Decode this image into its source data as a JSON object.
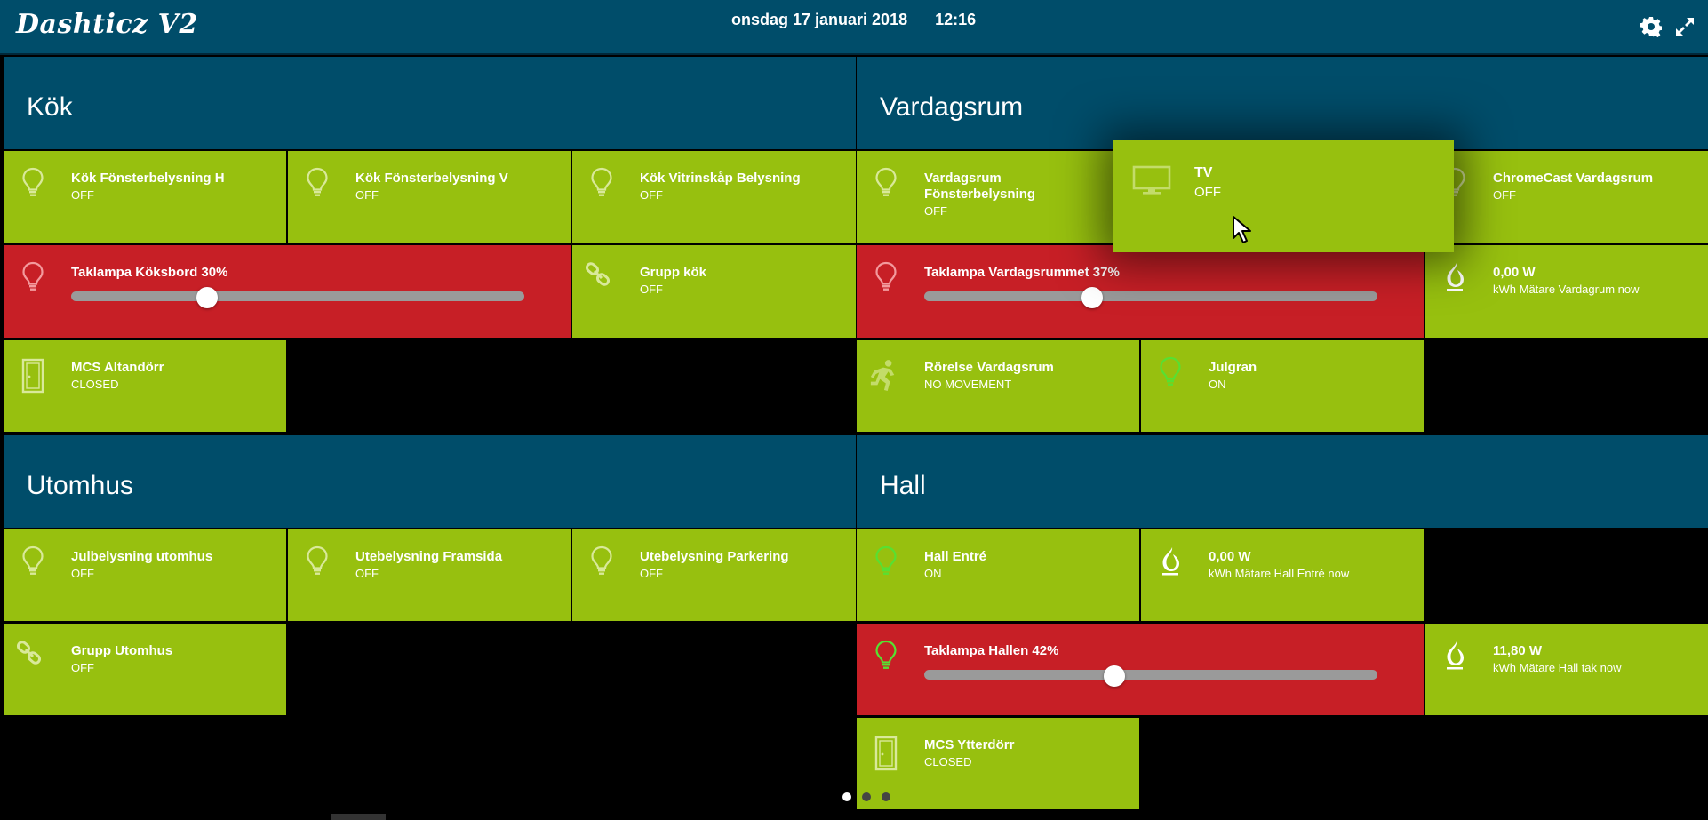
{
  "app": {
    "title": "Dashticz V2"
  },
  "header": {
    "date": "onsdag 17 januari 2018",
    "time": "12:16"
  },
  "sections": [
    {
      "title": "Kök"
    },
    {
      "title": "Vardagsrum"
    },
    {
      "title": "Utomhus"
    },
    {
      "title": "Hall"
    }
  ],
  "tiles": {
    "kok_h": {
      "name": "Kök Fönsterbelysning H",
      "status": "OFF",
      "icon": "lightbulb-icon"
    },
    "kok_v": {
      "name": "Kök Fönsterbelysning V",
      "status": "OFF",
      "icon": "lightbulb-icon"
    },
    "kok_vitrin": {
      "name": "Kök Vitrinskåp Belysning",
      "status": "OFF",
      "icon": "lightbulb-icon"
    },
    "taklampa_koksbord": {
      "name": "Taklampa Köksbord 30%",
      "level": 30,
      "icon": "lightbulb-icon",
      "color": "#c71f26"
    },
    "grupp_kok": {
      "name": "Grupp kök",
      "status": "OFF",
      "icon": "link-icon"
    },
    "mcs_altandorr": {
      "name": "MCS Altandörr",
      "status": "CLOSED",
      "icon": "door-icon"
    },
    "vardagsrum_fonster": {
      "name": "Vardagsrum Fönsterbelysning",
      "status": "OFF",
      "icon": "lightbulb-icon"
    },
    "chromecast": {
      "name": "ChromeCast Vardagsrum",
      "status": "OFF",
      "icon": "lightbulb-icon"
    },
    "taklampa_vardagsrum": {
      "name": "Taklampa Vardagsrummet 37%",
      "level": 37,
      "icon": "lightbulb-icon",
      "color": "#c71f26"
    },
    "matare_vardagsrum": {
      "name": "0,00 W",
      "status": "kWh Mätare Vardagrum now",
      "icon": "flame-icon"
    },
    "rorelse": {
      "name": "Rörelse Vardagsrum",
      "status": "NO MOVEMENT",
      "icon": "running-person-icon"
    },
    "julgran": {
      "name": "Julgran",
      "status": "ON",
      "icon": "lightbulb-icon"
    },
    "julbelysning": {
      "name": "Julbelysning utomhus",
      "status": "OFF",
      "icon": "lightbulb-icon"
    },
    "ute_framsida": {
      "name": "Utebelysning Framsida",
      "status": "OFF",
      "icon": "lightbulb-icon"
    },
    "ute_parkering": {
      "name": "Utebelysning Parkering",
      "status": "OFF",
      "icon": "lightbulb-icon"
    },
    "grupp_utomhus": {
      "name": "Grupp Utomhus",
      "status": "OFF",
      "icon": "link-icon"
    },
    "hall_entre": {
      "name": "Hall Entré",
      "status": "ON",
      "icon": "lightbulb-icon"
    },
    "matare_hall_entre": {
      "name": "0,00 W",
      "status": "kWh Mätare Hall Entré now",
      "icon": "flame-icon"
    },
    "taklampa_hallen": {
      "name": "Taklampa Hallen 42%",
      "level": 42,
      "icon": "lightbulb-icon",
      "color": "#c71f26"
    },
    "matare_hall_tak": {
      "name": "11,80 W",
      "status": "kWh Mätare Hall tak now",
      "icon": "flame-icon"
    },
    "mcs_ytterdorr": {
      "name": "MCS Ytterdörr",
      "status": "CLOSED",
      "icon": "door-icon"
    }
  },
  "popup": {
    "name": "TV",
    "status": "OFF",
    "icon": "monitor-icon"
  },
  "pagination": {
    "pages": 3,
    "active": 1
  },
  "colors": {
    "header": "#004d6a",
    "tile_green": "#97c00f",
    "tile_red": "#c71f26",
    "icon_on": "#57e032"
  }
}
